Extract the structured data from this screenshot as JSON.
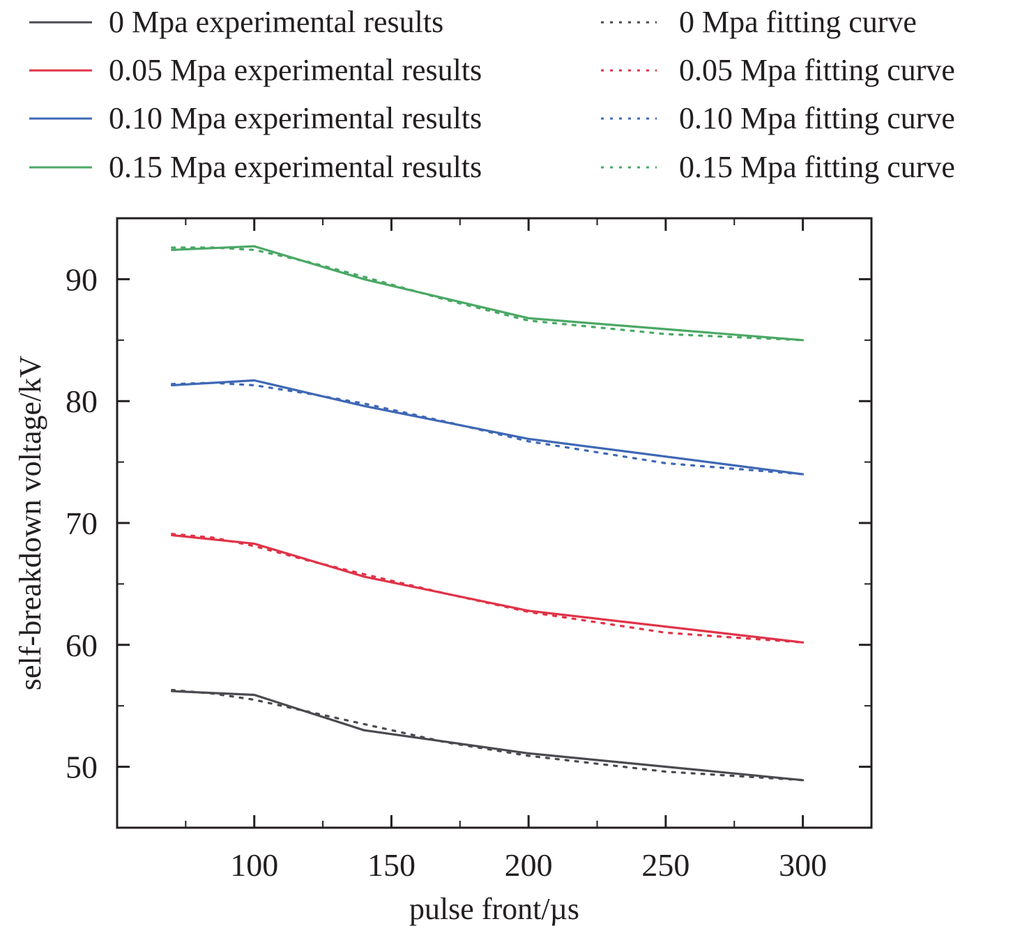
{
  "chart_data": {
    "type": "line",
    "title": "",
    "xlabel": "pulse front/µs",
    "ylabel": "self-breakdown voltage/kV",
    "xlim": [
      50,
      325
    ],
    "ylim": [
      45,
      95
    ],
    "x_ticks": [
      100,
      150,
      200,
      250,
      300
    ],
    "x_tick_labels": [
      "100",
      "150",
      "200",
      "250",
      "300"
    ],
    "x_minor_ticks": [
      75,
      125,
      175,
      225,
      275
    ],
    "y_ticks": [
      50,
      60,
      70,
      80,
      90
    ],
    "y_tick_labels": [
      "50",
      "60",
      "70",
      "80",
      "90"
    ],
    "y_minor_ticks": [
      55,
      65,
      75,
      85
    ],
    "grid": false,
    "legend_position": "top",
    "series": [
      {
        "name": "0 Mpa experimental results",
        "style": "solid",
        "color": "#4a4a4f",
        "x": [
          70,
          100,
          140,
          200,
          300
        ],
        "values": [
          56.2,
          55.9,
          53.0,
          51.1,
          48.9
        ]
      },
      {
        "name": "0.05 Mpa experimental results",
        "style": "solid",
        "color": "#e03348",
        "x": [
          70,
          100,
          140,
          200,
          300
        ],
        "values": [
          69.0,
          68.3,
          65.6,
          62.8,
          60.2
        ]
      },
      {
        "name": "0.10 Mpa experimental results",
        "style": "solid",
        "color": "#3f68b5",
        "x": [
          70,
          100,
          140,
          200,
          300
        ],
        "values": [
          81.3,
          81.7,
          79.6,
          76.9,
          74.0
        ]
      },
      {
        "name": "0.15 Mpa experimental results",
        "style": "solid",
        "color": "#4aa865",
        "x": [
          70,
          100,
          140,
          200,
          300
        ],
        "values": [
          92.4,
          92.7,
          90.0,
          86.8,
          85.0
        ]
      },
      {
        "name": "0 Mpa fitting curve",
        "style": "dotted",
        "color": "#4a4a4f",
        "x": [
          70,
          85,
          100,
          120,
          140,
          170,
          200,
          250,
          300
        ],
        "values": [
          56.3,
          56.0,
          55.5,
          54.5,
          53.5,
          52.0,
          50.9,
          49.6,
          48.9
        ]
      },
      {
        "name": "0.05 Mpa fitting curve",
        "style": "dotted",
        "color": "#e03348",
        "x": [
          70,
          85,
          100,
          120,
          140,
          170,
          200,
          250,
          300
        ],
        "values": [
          69.1,
          68.8,
          68.1,
          66.9,
          65.8,
          64.2,
          62.7,
          61.0,
          60.2
        ]
      },
      {
        "name": "0.10 Mpa fitting curve",
        "style": "dotted",
        "color": "#3f68b5",
        "x": [
          70,
          85,
          100,
          120,
          140,
          170,
          200,
          250,
          300
        ],
        "values": [
          81.4,
          81.5,
          81.3,
          80.6,
          79.8,
          78.3,
          76.7,
          74.9,
          74.0
        ]
      },
      {
        "name": "0.15 Mpa fitting curve",
        "style": "dotted",
        "color": "#4aa865",
        "x": [
          70,
          85,
          100,
          120,
          140,
          170,
          200,
          250,
          300
        ],
        "values": [
          92.6,
          92.6,
          92.4,
          91.4,
          90.2,
          88.3,
          86.6,
          85.5,
          85.0
        ]
      }
    ]
  }
}
